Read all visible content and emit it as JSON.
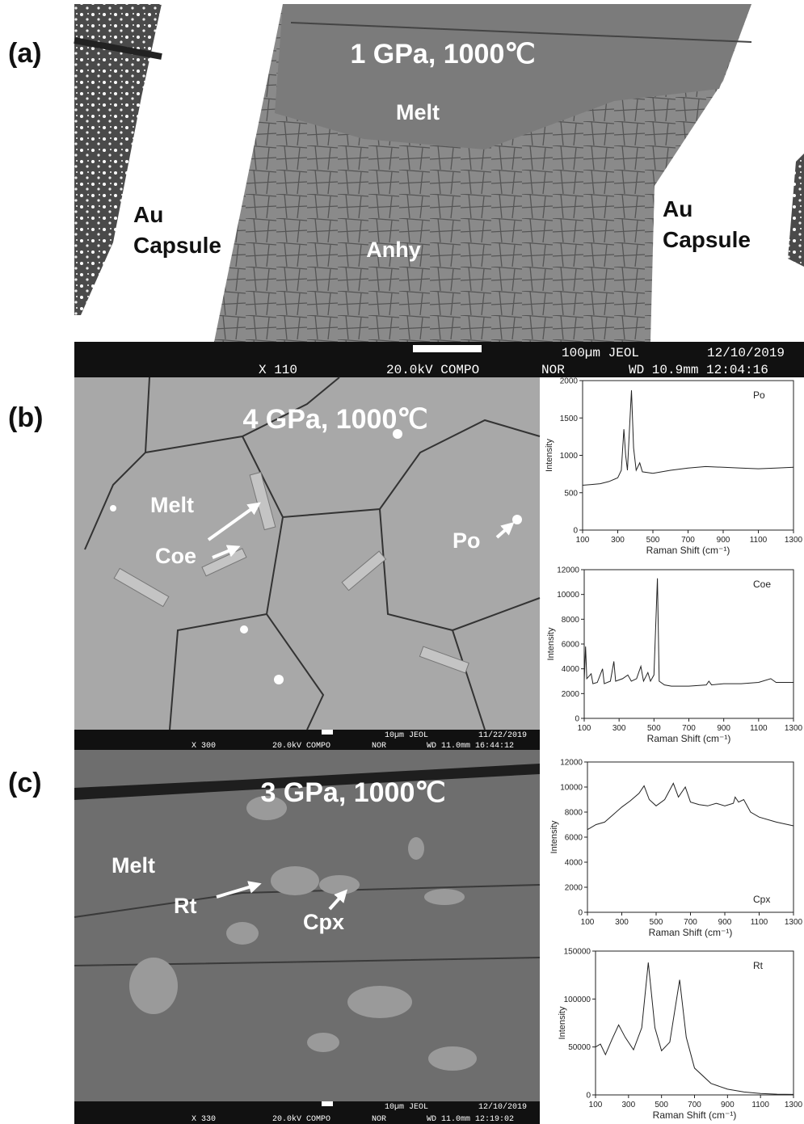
{
  "panels": [
    {
      "label": "(a)",
      "condition": "1 GPa, 1000℃",
      "phases": [
        "Melt",
        "Anhy",
        "Au",
        "Capsule",
        "Au",
        "Capsule"
      ],
      "info": [
        "100µm JEOL",
        "12/10/2019",
        "X 110",
        "20.0kV COMPO",
        "NOR",
        "WD 10.9mm 12:04:16"
      ]
    },
    {
      "label": "(b)",
      "condition": "4 GPa, 1000℃",
      "phases": [
        "Melt",
        "Coe",
        "Po"
      ],
      "info": [
        "10µm JEOL",
        "11/22/2019",
        "X 300",
        "20.0kV COMPO",
        "NOR",
        "WD 11.0mm 16:44:12"
      ]
    },
    {
      "label": "(c)",
      "condition": "3 GPa, 1000℃",
      "phases": [
        "Melt",
        "Rt",
        "Cpx"
      ],
      "info": [
        "10µm JEOL",
        "12/10/2019",
        "X 330",
        "20.0kV COMPO",
        "NOR",
        "WD 11.0mm 12:19:02"
      ]
    }
  ],
  "chart_data": [
    {
      "type": "line",
      "annotation": "Po",
      "xlabel": "Raman Shift (cm⁻¹)",
      "ylabel": "Intensity",
      "color": "#222222",
      "x": [
        100,
        150,
        200,
        250,
        300,
        320,
        335,
        345,
        355,
        370,
        378,
        390,
        405,
        425,
        440,
        500,
        600,
        700,
        800,
        900,
        1000,
        1100,
        1200,
        1300
      ],
      "values": [
        600,
        610,
        620,
        650,
        700,
        800,
        1350,
        1000,
        800,
        1500,
        1870,
        1100,
        800,
        900,
        780,
        760,
        800,
        830,
        850,
        840,
        830,
        820,
        830,
        840
      ],
      "xlim": [
        100,
        1300
      ],
      "xticks": [
        100,
        300,
        500,
        700,
        900,
        1100,
        1300
      ],
      "ylim": [
        0,
        2000
      ],
      "yticks": [
        0,
        500,
        1000,
        1500,
        2000
      ]
    },
    {
      "type": "line",
      "annotation": "Coe",
      "xlabel": "Raman Shift (cm⁻¹)",
      "ylabel": "Intensity",
      "color": "#222222",
      "x": [
        100,
        108,
        115,
        140,
        150,
        175,
        205,
        215,
        250,
        270,
        280,
        320,
        350,
        370,
        400,
        425,
        440,
        465,
        480,
        500,
        520,
        530,
        560,
        600,
        700,
        800,
        815,
        830,
        900,
        1000,
        1100,
        1170,
        1200,
        1300
      ],
      "values": [
        3000,
        5800,
        3200,
        3600,
        2800,
        2900,
        4000,
        2800,
        3000,
        4600,
        3000,
        3200,
        3500,
        3000,
        3200,
        4200,
        3000,
        3700,
        3000,
        3500,
        11300,
        3000,
        2700,
        2600,
        2600,
        2700,
        3000,
        2700,
        2800,
        2800,
        2900,
        3200,
        2900,
        2900
      ],
      "xlim": [
        100,
        1300
      ],
      "xticks": [
        100,
        300,
        500,
        700,
        900,
        1100,
        1300
      ],
      "ylim": [
        0,
        12000
      ],
      "yticks": [
        0,
        2000,
        4000,
        6000,
        8000,
        10000,
        12000
      ]
    },
    {
      "type": "line",
      "annotation": "Cpx",
      "xlabel": "Raman Shift (cm⁻¹)",
      "ylabel": "Intensity",
      "color": "#222222",
      "x": [
        100,
        150,
        200,
        250,
        300,
        350,
        400,
        430,
        460,
        500,
        550,
        600,
        630,
        670,
        700,
        750,
        800,
        850,
        900,
        950,
        960,
        980,
        1010,
        1050,
        1100,
        1200,
        1300
      ],
      "values": [
        6600,
        7000,
        7200,
        7800,
        8400,
        8900,
        9500,
        10100,
        9000,
        8500,
        9000,
        10300,
        9200,
        10000,
        8800,
        8600,
        8500,
        8700,
        8500,
        8700,
        9200,
        8800,
        9000,
        8000,
        7600,
        7200,
        6900
      ],
      "xlim": [
        100,
        1300
      ],
      "xticks": [
        100,
        300,
        500,
        700,
        900,
        1100,
        1300
      ],
      "ylim": [
        0,
        12000
      ],
      "yticks": [
        0,
        2000,
        4000,
        6000,
        8000,
        10000,
        12000
      ]
    },
    {
      "type": "line",
      "annotation": "Rt",
      "xlabel": "Raman Shift (cm⁻¹)",
      "ylabel": "Intensity",
      "color": "#222222",
      "x": [
        100,
        130,
        160,
        200,
        240,
        280,
        330,
        380,
        420,
        460,
        500,
        550,
        610,
        650,
        700,
        800,
        900,
        1000,
        1100,
        1200,
        1300
      ],
      "values": [
        50000,
        53000,
        42000,
        58000,
        73000,
        60000,
        47000,
        70000,
        138000,
        70000,
        46000,
        55000,
        120000,
        60000,
        28000,
        12000,
        6000,
        3000,
        1500,
        800,
        500
      ],
      "xlim": [
        100,
        1300
      ],
      "xticks": [
        100,
        300,
        500,
        700,
        900,
        1100,
        1300
      ],
      "ylim": [
        0,
        150000
      ],
      "yticks": [
        0,
        50000,
        100000,
        150000
      ]
    }
  ]
}
